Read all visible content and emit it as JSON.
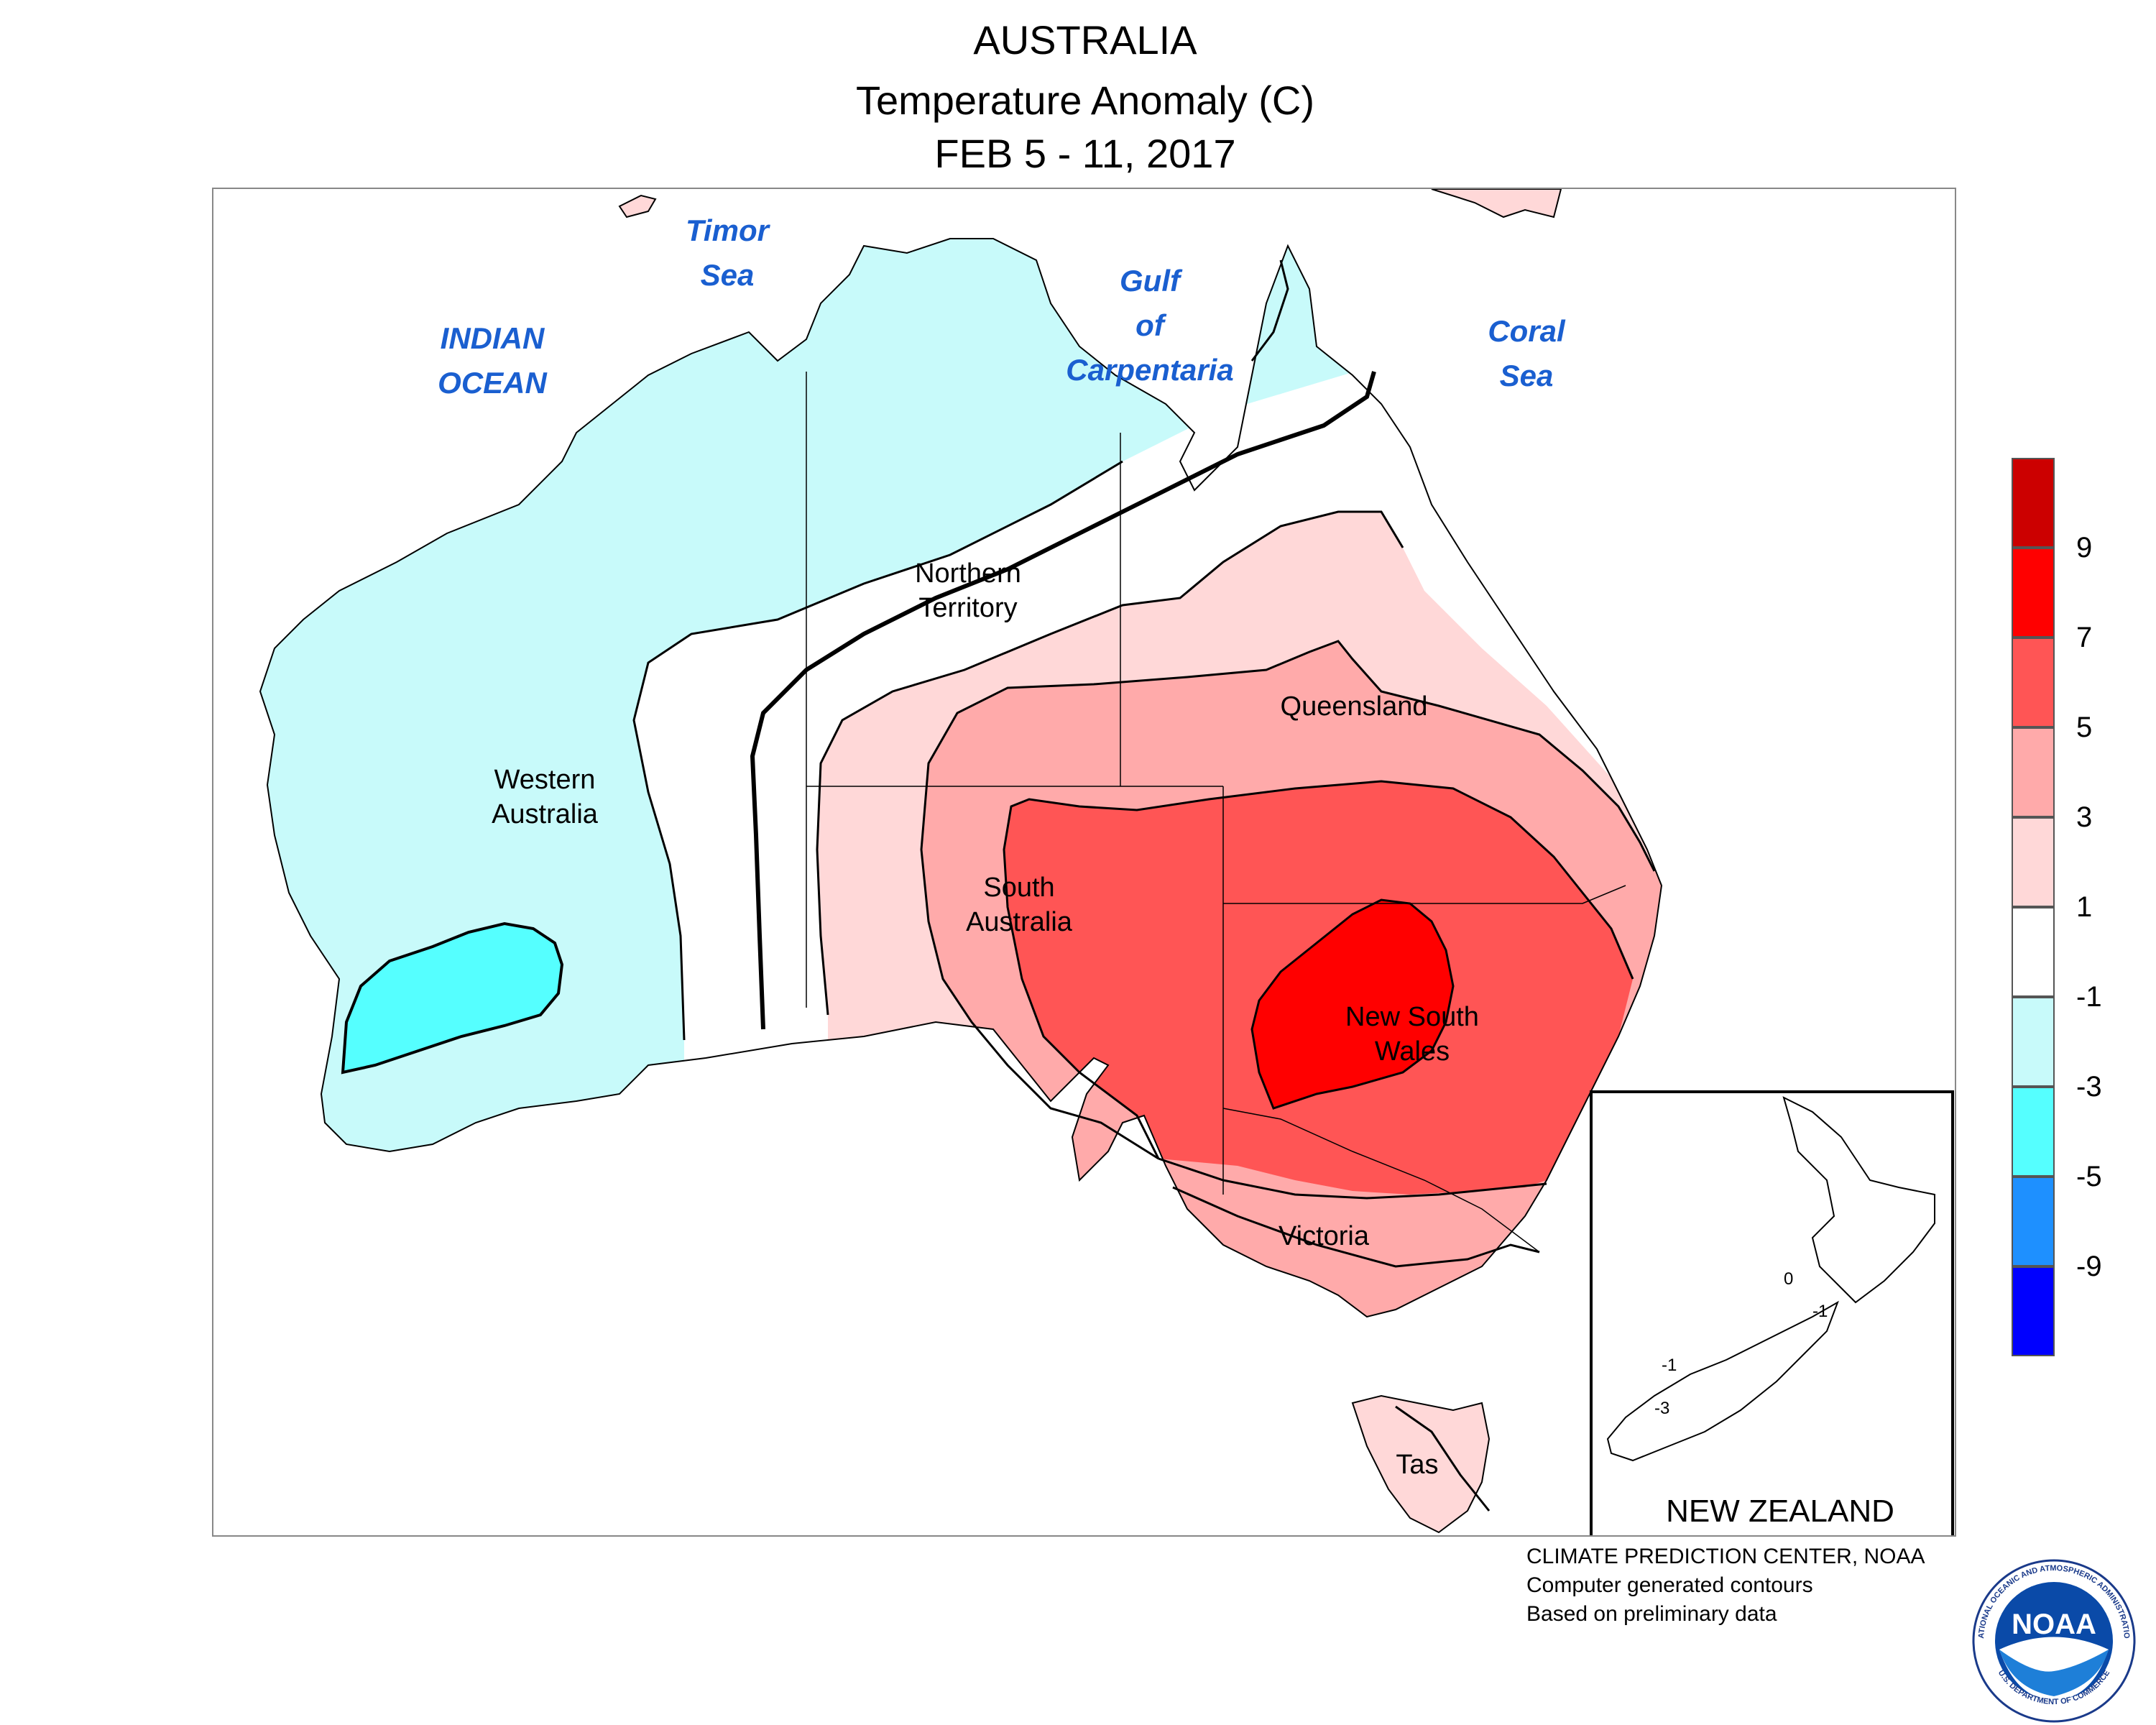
{
  "title": {
    "line1": "AUSTRALIA",
    "line2": "Temperature Anomaly (C)",
    "line3": "FEB 5 - 11, 2017"
  },
  "labels": {
    "indian_ocean": [
      "INDIAN",
      "OCEAN"
    ],
    "timor_sea": [
      "Timor",
      "Sea"
    ],
    "gulf": [
      "Gulf",
      "of",
      "Carpentaria"
    ],
    "coral_sea": [
      "Coral",
      "Sea"
    ],
    "western_australia": [
      "Western",
      "Australia"
    ],
    "northern_territory": [
      "Northern",
      "Territory"
    ],
    "queensland": "Queensland",
    "south_australia": [
      "South",
      "Australia"
    ],
    "new_south_wales": [
      "New South",
      "Wales"
    ],
    "victoria": "Victoria",
    "tasmania": "Tas",
    "new_zealand": "NEW ZEALAND",
    "nz_contours": [
      "0",
      "-1",
      "-1",
      "-3"
    ]
  },
  "legend": {
    "colors": [
      "#cc0000",
      "#ff0000",
      "#ff5555",
      "#ffaaaa",
      "#ffd8d8",
      "#ffffff",
      "#c8fafa",
      "#55ffff",
      "#1e90ff",
      "#0000ff"
    ],
    "tick_labels": [
      "9",
      "7",
      "5",
      "3",
      "1",
      "-1",
      "-3",
      "-5",
      "-9"
    ]
  },
  "credit": {
    "line1": "CLIMATE PREDICTION CENTER, NOAA",
    "line2": "Computer generated contours",
    "line3": "Based on preliminary data"
  },
  "logo": {
    "text": "NOAA",
    "ring_text": "NATIONAL OCEANIC AND ATMOSPHERIC ADMINISTRATION",
    "ring_text_bottom": "U.S. DEPARTMENT OF COMMERCE"
  }
}
